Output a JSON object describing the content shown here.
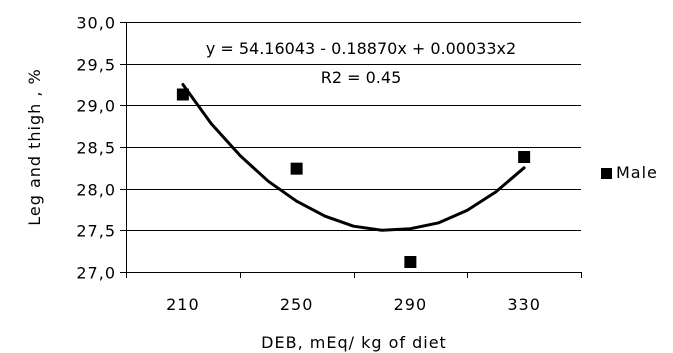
{
  "chart_data": {
    "type": "scatter",
    "title": "",
    "xlabel": "DEB, mEq/ kg of diet",
    "ylabel": "Leg and thigh , %",
    "categories": [
      "210",
      "250",
      "290",
      "330"
    ],
    "x_values": [
      210,
      250,
      290,
      330
    ],
    "xlim": [
      190,
      350
    ],
    "ylim": [
      27.0,
      30.0
    ],
    "y_ticks": [
      "27,0",
      "27,5",
      "28,0",
      "28,5",
      "29,0",
      "29,5",
      "30,0"
    ],
    "y_tick_values": [
      27.0,
      27.5,
      28.0,
      28.5,
      29.0,
      29.5,
      30.0
    ],
    "grid": true,
    "legend_position": "right",
    "series": [
      {
        "name": "Male",
        "marker": "square",
        "color": "#000000",
        "values": [
          29.13,
          28.24,
          27.12,
          28.38
        ]
      }
    ],
    "trendline": {
      "type": "polynomial-2",
      "color": "#000000",
      "x_range": [
        210,
        330
      ],
      "coefficients": [
        54.16043,
        -0.1887,
        0.00033
      ],
      "fit_points": {
        "x": [
          210,
          220,
          230,
          240,
          250,
          260,
          270,
          280,
          290,
          300,
          310,
          320,
          330
        ],
        "y": [
          29.25,
          28.78,
          28.4,
          28.09,
          27.85,
          27.67,
          27.55,
          27.5,
          27.52,
          27.59,
          27.74,
          27.96,
          28.25
        ]
      }
    },
    "annotations": {
      "equation": "y = 54.16043  - 0.18870x + 0.00033x2",
      "r2": "R2 = 0.45"
    }
  }
}
